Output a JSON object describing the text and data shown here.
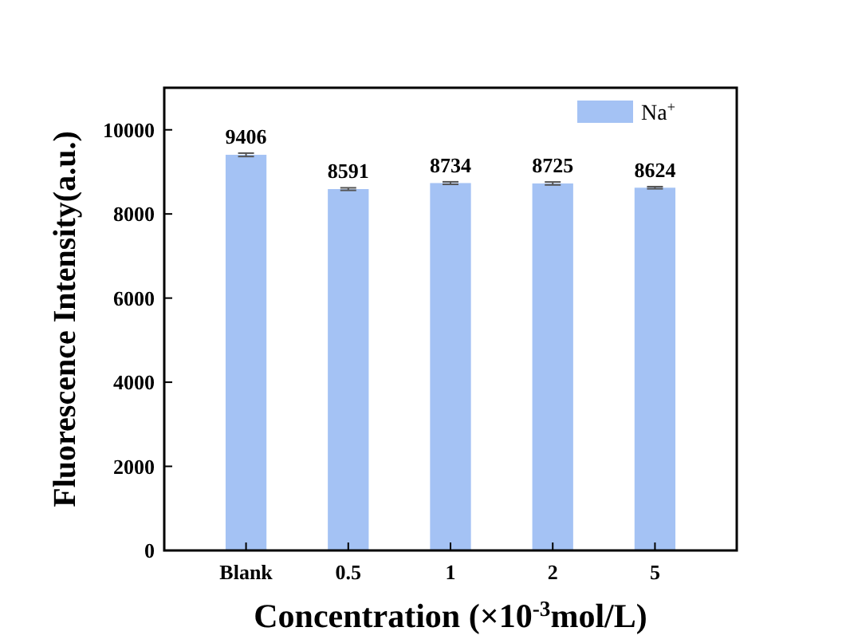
{
  "chart_data": {
    "type": "bar",
    "xlabel": "Concentration (×10$^{-3}$mol/L)",
    "ylabel": "Fluorescence Intensity(a.u.)",
    "categories": [
      "Blank",
      "0.5",
      "1",
      "2",
      "5"
    ],
    "series": [
      {
        "name": "Na$^{+}$",
        "color": "#a4c2f4",
        "values": [
          9406,
          8591,
          8734,
          8725,
          8624
        ],
        "errors": [
          40,
          30,
          30,
          35,
          25
        ]
      }
    ],
    "ylim": [
      0,
      11000
    ],
    "yticks": [
      0,
      2000,
      4000,
      6000,
      8000,
      10000
    ],
    "data_labels": true,
    "legend": "top right",
    "grid": false
  }
}
